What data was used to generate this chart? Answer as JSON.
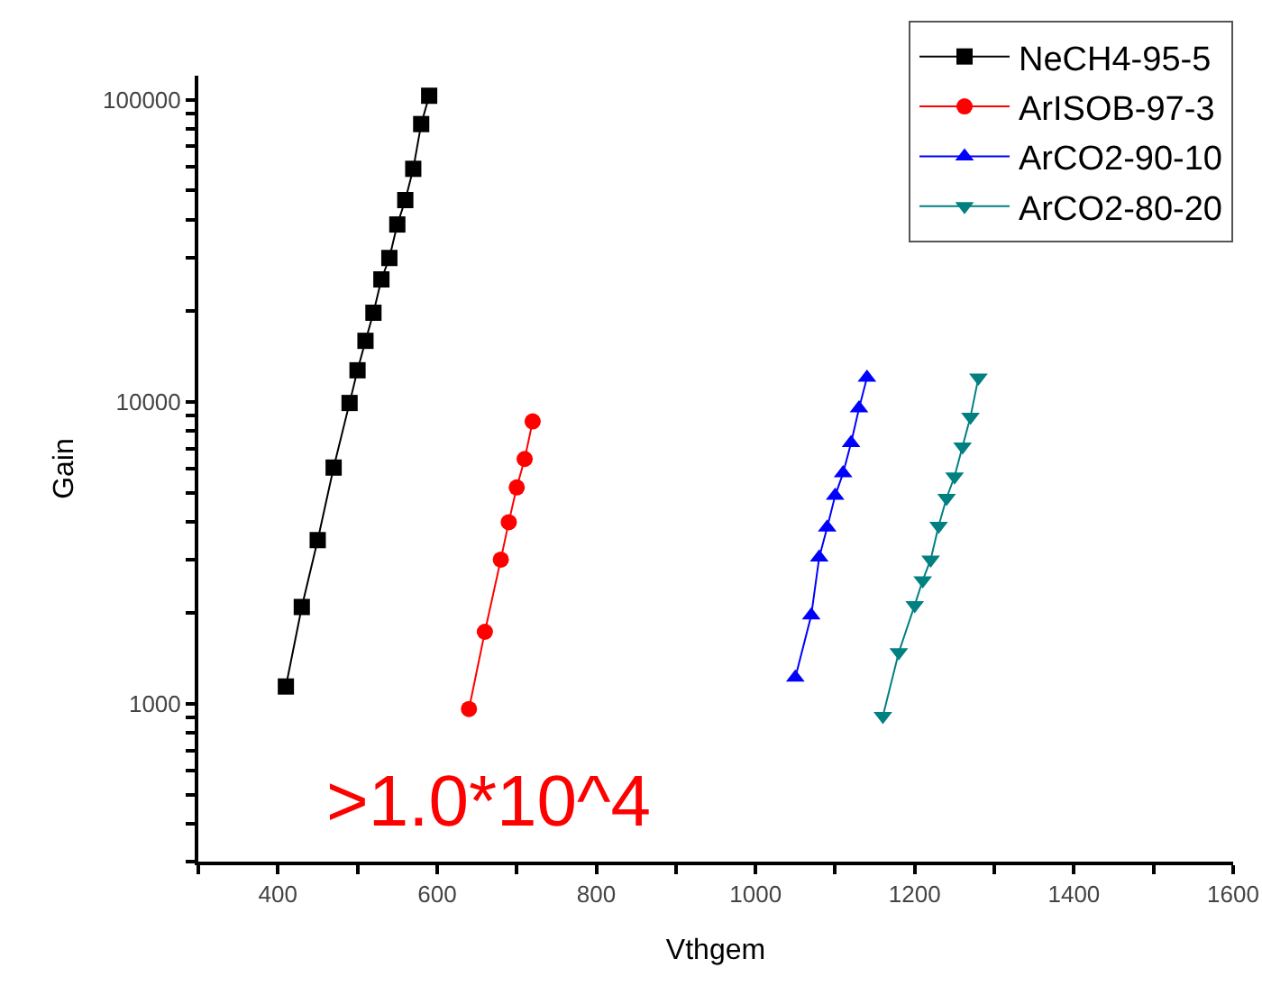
{
  "chart_data": {
    "type": "line",
    "xlabel": "Vthgem",
    "ylabel": "Gain",
    "log": "y",
    "grid": false,
    "legend": "top right",
    "line_style": "solid",
    "xlim": [
      300,
      1600
    ],
    "xticks": [
      {
        "value": 300,
        "label": null
      },
      400,
      {
        "value": 500,
        "label": null
      },
      600,
      {
        "value": 700,
        "label": null
      },
      800,
      {
        "value": 900,
        "label": null
      },
      1000,
      {
        "value": 1100,
        "label": null
      },
      1200,
      {
        "value": 1300,
        "label": null
      },
      1400,
      {
        "value": 1500,
        "label": null
      },
      1600
    ],
    "ylim": [
      300,
      120000
    ],
    "yticks": [
      {
        "value": 300,
        "label": null
      },
      {
        "value": 400,
        "label": null
      },
      {
        "value": 500,
        "label": null
      },
      {
        "value": 600,
        "label": null
      },
      {
        "value": 700,
        "label": null
      },
      {
        "value": 800,
        "label": null
      },
      {
        "value": 900,
        "label": null
      },
      1000,
      {
        "value": 2000,
        "label": null
      },
      {
        "value": 3000,
        "label": null
      },
      {
        "value": 4000,
        "label": null
      },
      {
        "value": 5000,
        "label": null
      },
      {
        "value": 6000,
        "label": null
      },
      {
        "value": 7000,
        "label": null
      },
      {
        "value": 8000,
        "label": null
      },
      {
        "value": 9000,
        "label": null
      },
      10000,
      {
        "value": 20000,
        "label": null
      },
      {
        "value": 30000,
        "label": null
      },
      {
        "value": 40000,
        "label": null
      },
      {
        "value": 50000,
        "label": null
      },
      {
        "value": 60000,
        "label": null
      },
      {
        "value": 70000,
        "label": null
      },
      {
        "value": 80000,
        "label": null
      },
      {
        "value": 90000,
        "label": null
      },
      100000
    ],
    "annotations": [
      ">1.0*10^4"
    ],
    "series": [
      {
        "name": "NeCH4-95-5",
        "color": "#000000",
        "marker": "square",
        "x": [
          410,
          430,
          450,
          470,
          490,
          500,
          510,
          520,
          530,
          540,
          550,
          560,
          570,
          580,
          590
        ],
        "values": [
          1140,
          2090,
          3480,
          6050,
          9900,
          12700,
          15900,
          19700,
          25400,
          29900,
          38600,
          46500,
          59000,
          83000,
          103000
        ]
      },
      {
        "name": "ArISOB-97-3",
        "color": "#ff0000",
        "marker": "circle",
        "x": [
          640,
          660,
          680,
          690,
          700,
          710,
          720
        ],
        "values": [
          960,
          1730,
          3000,
          3990,
          5200,
          6460,
          8600
        ]
      },
      {
        "name": "ArCO2-90-10",
        "color": "#0000ff",
        "marker": "triangle",
        "x": [
          1050,
          1070,
          1080,
          1090,
          1100,
          1110,
          1120,
          1130,
          1140
        ],
        "values": [
          1220,
          1960,
          3050,
          3830,
          4880,
          5800,
          7300,
          9500,
          12000
        ]
      },
      {
        "name": "ArCO2-80-20",
        "color": "#008080",
        "marker": "triangle-down",
        "x": [
          1160,
          1180,
          1200,
          1210,
          1220,
          1230,
          1240,
          1250,
          1260,
          1270,
          1280
        ],
        "values": [
          910,
          1480,
          2120,
          2560,
          3000,
          3880,
          4800,
          5650,
          7100,
          8900,
          12000
        ]
      }
    ]
  }
}
